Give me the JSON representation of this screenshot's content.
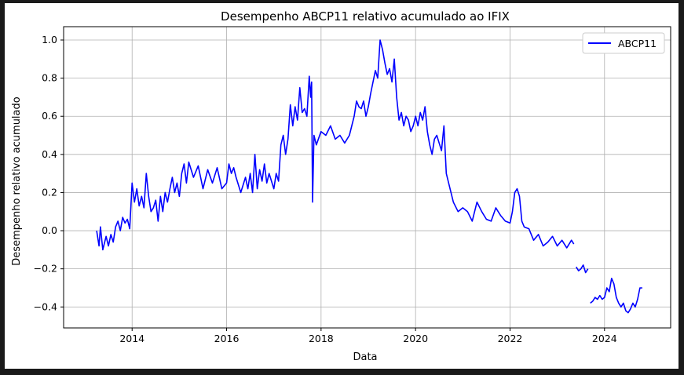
{
  "chart_data": {
    "type": "line",
    "title": "Desempenho ABCP11 relativo acumulado ao IFIX",
    "xlabel": "Data",
    "ylabel": "Desempenho relativo acumulado",
    "xlim": [
      2012.55,
      2025.4
    ],
    "ylim": [
      -0.51,
      1.07
    ],
    "x_ticks": [
      2014,
      2016,
      2018,
      2020,
      2022,
      2024
    ],
    "y_ticks": [
      -0.4,
      -0.2,
      0.0,
      0.2,
      0.4,
      0.6,
      0.8,
      1.0
    ],
    "y_tick_labels": [
      "−0.4",
      "−0.2",
      "0.0",
      "0.2",
      "0.4",
      "0.6",
      "0.8",
      "1.0"
    ],
    "grid": true,
    "legend_position": "upper-right",
    "series": [
      {
        "name": "ABCP11",
        "color": "#0000ff",
        "segments": [
          {
            "x": [
              2013.25,
              2013.3,
              2013.33,
              2013.38,
              2013.45,
              2013.5,
              2013.55,
              2013.6,
              2013.65,
              2013.7,
              2013.75,
              2013.8,
              2013.85,
              2013.9,
              2013.95,
              2014.0,
              2014.05,
              2014.1,
              2014.15,
              2014.2,
              2014.25,
              2014.3,
              2014.35,
              2014.4,
              2014.45,
              2014.5,
              2014.55,
              2014.6,
              2014.65,
              2014.7,
              2014.75,
              2014.8,
              2014.85,
              2014.9,
              2014.95,
              2015.0,
              2015.05,
              2015.1,
              2015.15,
              2015.2,
              2015.3,
              2015.4,
              2015.5,
              2015.6,
              2015.7,
              2015.8,
              2015.9,
              2016.0,
              2016.05,
              2016.1,
              2016.15,
              2016.2,
              2016.3,
              2016.4,
              2016.45,
              2016.5,
              2016.55,
              2016.6,
              2016.65,
              2016.7,
              2016.75,
              2016.8,
              2016.85,
              2016.9,
              2017.0,
              2017.05,
              2017.1,
              2017.15,
              2017.2,
              2017.25,
              2017.3,
              2017.35,
              2017.4,
              2017.45,
              2017.5,
              2017.55,
              2017.6,
              2017.65,
              2017.7,
              2017.75,
              2017.78,
              2017.8,
              2017.82,
              2017.85,
              2017.9,
              2018.0,
              2018.1,
              2018.2,
              2018.3,
              2018.4,
              2018.5,
              2018.6,
              2018.7,
              2018.75,
              2018.8,
              2018.85,
              2018.9,
              2018.95,
              2019.0,
              2019.05,
              2019.1,
              2019.15,
              2019.2,
              2019.25,
              2019.3,
              2019.35,
              2019.4,
              2019.45,
              2019.5,
              2019.55,
              2019.6,
              2019.65,
              2019.7,
              2019.75,
              2019.8,
              2019.85,
              2019.9,
              2019.95,
              2020.0,
              2020.05,
              2020.1,
              2020.15,
              2020.2,
              2020.25,
              2020.3,
              2020.35,
              2020.4,
              2020.45,
              2020.5,
              2020.55,
              2020.6,
              2020.65,
              2020.7,
              2020.8,
              2020.9,
              2021.0,
              2021.1,
              2021.2,
              2021.3,
              2021.4,
              2021.5,
              2021.6,
              2021.7,
              2021.8,
              2021.9,
              2022.0,
              2022.05,
              2022.1,
              2022.15,
              2022.2,
              2022.25,
              2022.3,
              2022.4,
              2022.5,
              2022.6,
              2022.7,
              2022.8,
              2022.9,
              2023.0,
              2023.1,
              2023.2,
              2023.3,
              2023.35
            ],
            "y": [
              0.0,
              -0.08,
              0.02,
              -0.1,
              -0.03,
              -0.08,
              -0.02,
              -0.06,
              0.02,
              0.05,
              0.0,
              0.07,
              0.04,
              0.06,
              0.01,
              0.25,
              0.15,
              0.22,
              0.13,
              0.18,
              0.12,
              0.3,
              0.18,
              0.1,
              0.12,
              0.16,
              0.05,
              0.18,
              0.1,
              0.2,
              0.15,
              0.22,
              0.28,
              0.2,
              0.25,
              0.18,
              0.3,
              0.35,
              0.25,
              0.36,
              0.28,
              0.34,
              0.22,
              0.32,
              0.25,
              0.33,
              0.22,
              0.25,
              0.35,
              0.3,
              0.33,
              0.28,
              0.2,
              0.28,
              0.22,
              0.3,
              0.2,
              0.4,
              0.22,
              0.32,
              0.26,
              0.35,
              0.25,
              0.3,
              0.22,
              0.3,
              0.26,
              0.45,
              0.5,
              0.4,
              0.48,
              0.66,
              0.55,
              0.65,
              0.58,
              0.75,
              0.62,
              0.64,
              0.6,
              0.81,
              0.7,
              0.78,
              0.15,
              0.5,
              0.45,
              0.52,
              0.5,
              0.55,
              0.48,
              0.5,
              0.46,
              0.5,
              0.6,
              0.68,
              0.65,
              0.64,
              0.68,
              0.6,
              0.65,
              0.72,
              0.78,
              0.84,
              0.8,
              1.0,
              0.95,
              0.88,
              0.82,
              0.85,
              0.78,
              0.9,
              0.7,
              0.58,
              0.62,
              0.55,
              0.6,
              0.58,
              0.52,
              0.55,
              0.6,
              0.55,
              0.62,
              0.58,
              0.65,
              0.52,
              0.45,
              0.4,
              0.48,
              0.5,
              0.46,
              0.42,
              0.55,
              0.3,
              0.25,
              0.15,
              0.1,
              0.12,
              0.1,
              0.05,
              0.15,
              0.1,
              0.06,
              0.05,
              0.12,
              0.08,
              0.05,
              0.04,
              0.1,
              0.2,
              0.22,
              0.18,
              0.05,
              0.02,
              0.01,
              -0.05,
              -0.02,
              -0.08,
              -0.06,
              -0.03,
              -0.08,
              -0.05,
              -0.09,
              -0.05,
              -0.07
            ]
          },
          {
            "x": [
              2023.4,
              2023.45,
              2023.5,
              2023.55,
              2023.6,
              2023.65
            ],
            "y": [
              -0.19,
              -0.21,
              -0.2,
              -0.18,
              -0.22,
              -0.2
            ]
          },
          {
            "x": [
              2023.7,
              2023.75,
              2023.8,
              2023.85,
              2023.9,
              2023.95,
              2024.0,
              2024.05,
              2024.1,
              2024.15,
              2024.2,
              2024.25,
              2024.3,
              2024.35,
              2024.4,
              2024.45,
              2024.5,
              2024.55,
              2024.6,
              2024.65,
              2024.7,
              2024.75,
              2024.8
            ],
            "y": [
              -0.38,
              -0.37,
              -0.35,
              -0.36,
              -0.34,
              -0.36,
              -0.35,
              -0.3,
              -0.32,
              -0.25,
              -0.28,
              -0.35,
              -0.38,
              -0.4,
              -0.38,
              -0.42,
              -0.43,
              -0.41,
              -0.38,
              -0.4,
              -0.36,
              -0.3,
              -0.3
            ]
          }
        ]
      }
    ]
  }
}
